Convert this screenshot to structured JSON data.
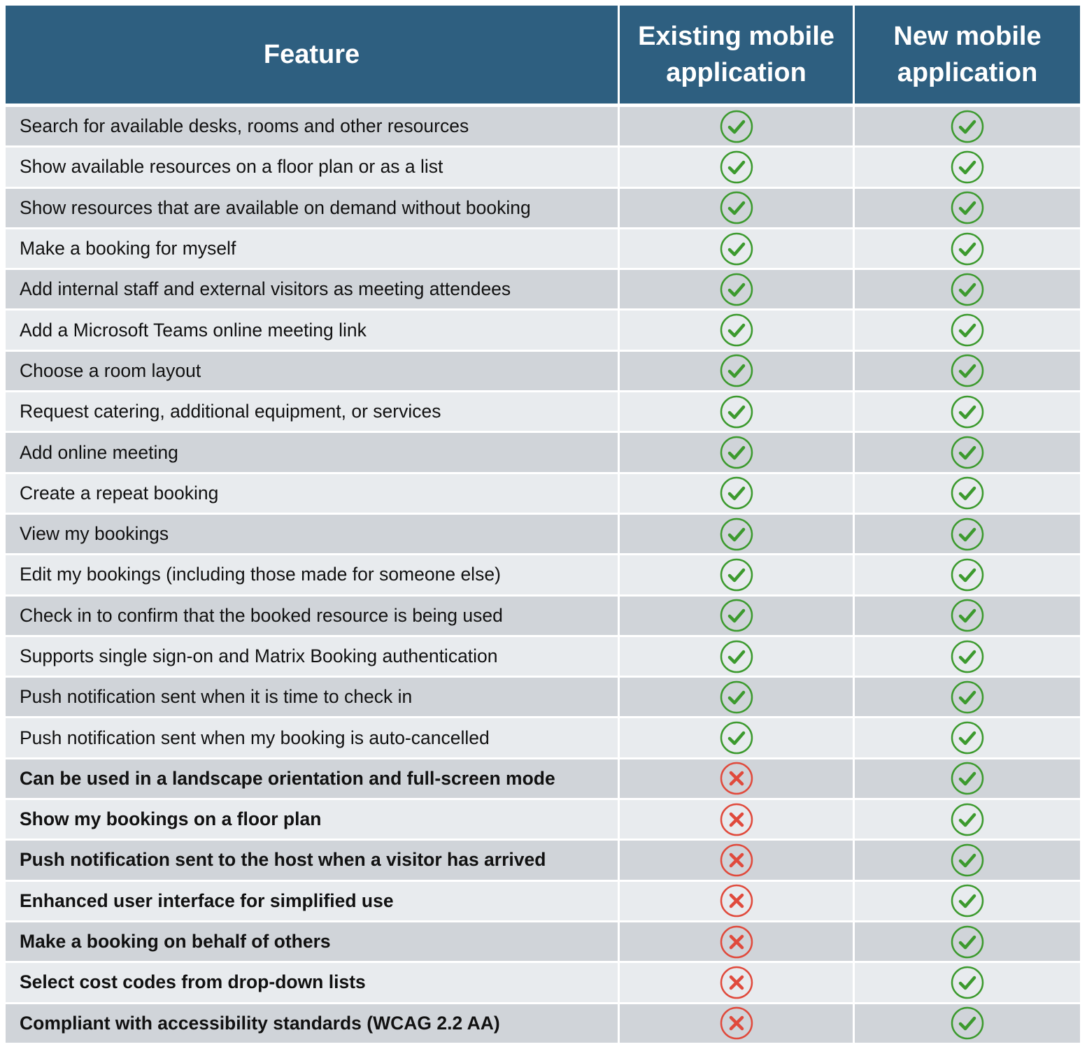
{
  "header": {
    "feature": "Feature",
    "existing": "Existing mobile application",
    "new": "New mobile application"
  },
  "colors": {
    "header_bg": "#2e5f80",
    "check": "#3c9a2e",
    "cross": "#e04a3c",
    "row_dark": "#d0d4d9",
    "row_light": "#e8ebee"
  },
  "rows": [
    {
      "feature": "Search for available desks, rooms and other resources",
      "existing": "check-icon",
      "new": "check-icon",
      "bold": false
    },
    {
      "feature": "Show available resources on a floor plan or as a list",
      "existing": "check-icon",
      "new": "check-icon",
      "bold": false
    },
    {
      "feature": "Show resources that are available on demand without booking",
      "existing": "check-icon",
      "new": "check-icon",
      "bold": false
    },
    {
      "feature": "Make a booking for myself",
      "existing": "check-icon",
      "new": "check-icon",
      "bold": false
    },
    {
      "feature": "Add internal staff and external visitors as meeting attendees",
      "existing": "check-icon",
      "new": "check-icon",
      "bold": false
    },
    {
      "feature": "Add a Microsoft Teams online meeting link",
      "existing": "check-icon",
      "new": "check-icon",
      "bold": false
    },
    {
      "feature": "Choose a room layout",
      "existing": "check-icon",
      "new": "check-icon",
      "bold": false
    },
    {
      "feature": "Request catering, additional equipment, or services",
      "existing": "check-icon",
      "new": "check-icon",
      "bold": false
    },
    {
      "feature": "Add online meeting",
      "existing": "check-icon",
      "new": "check-icon",
      "bold": false
    },
    {
      "feature": "Create a repeat booking",
      "existing": "check-icon",
      "new": "check-icon",
      "bold": false
    },
    {
      "feature": "View my bookings",
      "existing": "check-icon",
      "new": "check-icon",
      "bold": false
    },
    {
      "feature": "Edit my bookings (including those made for someone else)",
      "existing": "check-icon",
      "new": "check-icon",
      "bold": false
    },
    {
      "feature": "Check in to confirm that the booked resource is being used",
      "existing": "check-icon",
      "new": "check-icon",
      "bold": false
    },
    {
      "feature": "Supports single sign-on and Matrix Booking authentication",
      "existing": "check-icon",
      "new": "check-icon",
      "bold": false
    },
    {
      "feature": "Push notification sent when it is time to check in",
      "existing": "check-icon",
      "new": "check-icon",
      "bold": false
    },
    {
      "feature": "Push notification sent when my booking is auto-cancelled",
      "existing": "check-icon",
      "new": "check-icon",
      "bold": false
    },
    {
      "feature": "Can be used in a landscape orientation and full-screen mode",
      "existing": "cross-icon",
      "new": "check-icon",
      "bold": true
    },
    {
      "feature": "Show my bookings on a floor plan",
      "existing": "cross-icon",
      "new": "check-icon",
      "bold": true
    },
    {
      "feature": "Push notification sent to the host when a visitor has arrived",
      "existing": "cross-icon",
      "new": "check-icon",
      "bold": true
    },
    {
      "feature": "Enhanced user interface for simplified use",
      "existing": "cross-icon",
      "new": "check-icon",
      "bold": true
    },
    {
      "feature": "Make a booking on behalf of others",
      "existing": "cross-icon",
      "new": "check-icon",
      "bold": true
    },
    {
      "feature": "Select cost codes from drop-down lists",
      "existing": "cross-icon",
      "new": "check-icon",
      "bold": true
    },
    {
      "feature": "Compliant with accessibility standards (WCAG 2.2 AA)",
      "existing": "cross-icon",
      "new": "check-icon",
      "bold": true
    }
  ]
}
